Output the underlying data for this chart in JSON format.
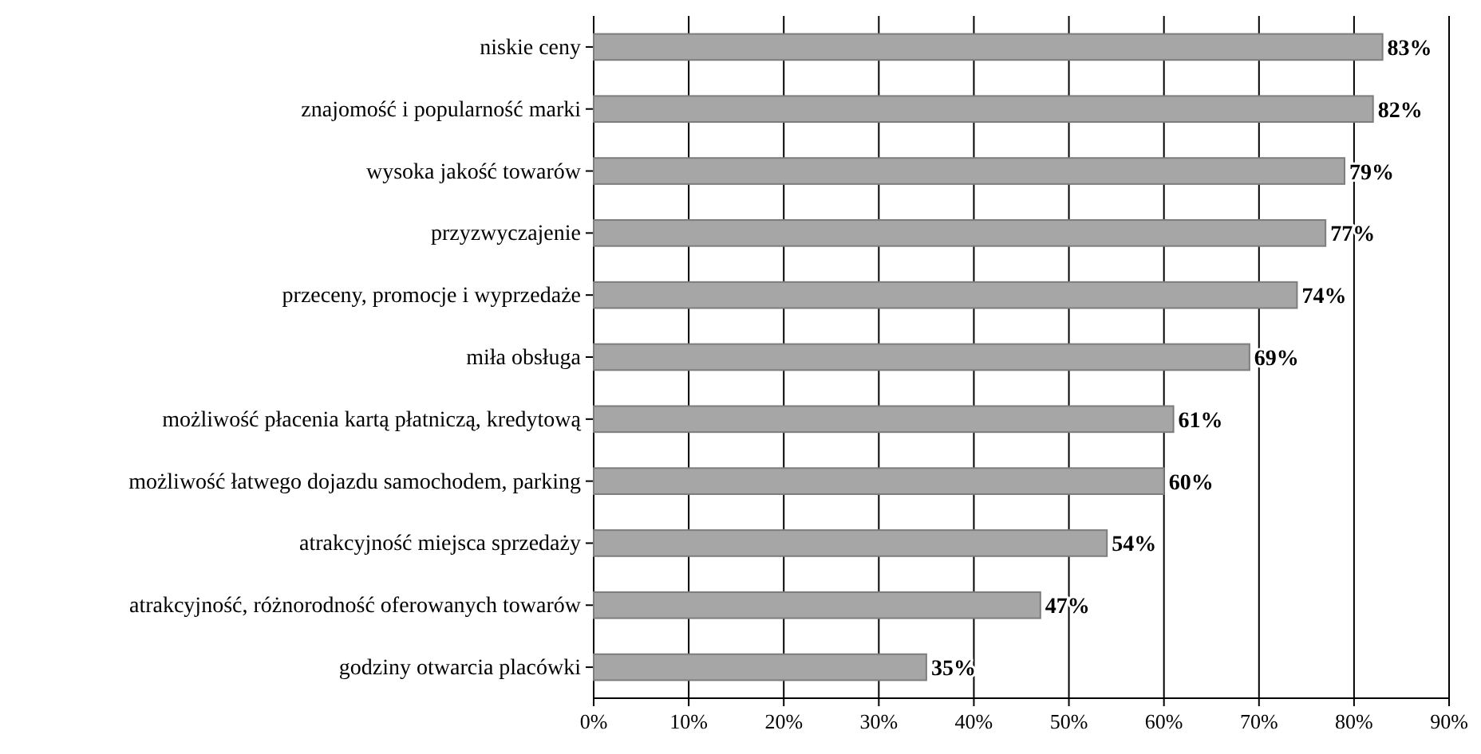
{
  "chart_data": {
    "type": "bar",
    "orientation": "horizontal",
    "categories": [
      "niskie ceny",
      "znajomość i popularność marki",
      "wysoka jakość towarów",
      "przyzwyczajenie",
      "przeceny, promocje i wyprzedaże",
      "miła obsługa",
      "możliwość płacenia kartą płatniczą, kredytową",
      "możliwość łatwego dojazdu samochodem, parking",
      "atrakcyjność miejsca sprzedaży",
      "atrakcyjność, różnorodność oferowanych towarów",
      "godziny otwarcia placówki"
    ],
    "values": [
      83,
      82,
      79,
      77,
      74,
      69,
      61,
      60,
      54,
      47,
      35
    ],
    "value_labels": [
      "83%",
      "82%",
      "79%",
      "77%",
      "74%",
      "69%",
      "61%",
      "60%",
      "54%",
      "47%",
      "35%"
    ],
    "color": "#a6a6a6",
    "xlim": [
      0,
      90
    ],
    "xticks": [
      {
        "value": 0,
        "label": "0%"
      },
      {
        "value": 10,
        "label": "10%"
      },
      {
        "value": 20,
        "label": "20%"
      },
      {
        "value": 30,
        "label": "30%"
      },
      {
        "value": 40,
        "label": "40%"
      },
      {
        "value": 50,
        "label": "50%"
      },
      {
        "value": 60,
        "label": "60%"
      },
      {
        "value": 70,
        "label": "70%"
      },
      {
        "value": 80,
        "label": "80%"
      },
      {
        "value": 90,
        "label": "90%"
      }
    ],
    "grid": "x"
  }
}
